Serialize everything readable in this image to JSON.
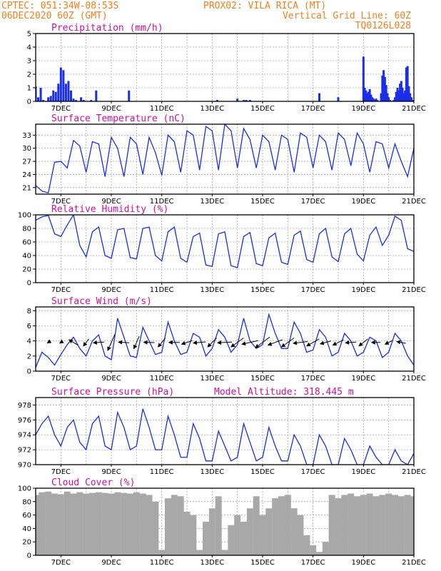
{
  "header": {
    "line1_left": "CPTEC:   051:34W-08:53S",
    "line1_right": "PROX02: VILA RICA (MT)",
    "line2_left": "06DEC2020 60Z (GMT)",
    "line2_right": "Vertical Grid Line: 60Z",
    "line3_right": "TQ0126L028"
  },
  "colors": {
    "header": "#f08020",
    "panel_title": "#d0109a",
    "series": "#1a2ee8",
    "cloud": "#a8a8a8",
    "wind_arrow": "#000000"
  },
  "chart_data": [
    {
      "type": "bar",
      "title": "Precipitation (mm/h)",
      "x": [
        0.0,
        0.1,
        0.2,
        0.3,
        0.4,
        0.5,
        0.6,
        0.7,
        0.8,
        0.9,
        1.0,
        1.1,
        1.2,
        1.3,
        1.4,
        1.5,
        1.6,
        1.7,
        1.8,
        1.9,
        2.2,
        2.4,
        3.7,
        7.2,
        8.0,
        8.25,
        8.35,
        8.5,
        11.25,
        12.0,
        13.0,
        13.05,
        13.1,
        13.15,
        13.2,
        13.25,
        13.3,
        13.35,
        13.4,
        13.45,
        13.5,
        13.55,
        13.6,
        13.65,
        13.7,
        13.75,
        13.8,
        13.85,
        13.9,
        13.95,
        14.0,
        14.05,
        14.1,
        14.15,
        14.2,
        14.25,
        14.3,
        14.35,
        14.4,
        14.45,
        14.5,
        14.55,
        14.6,
        14.65,
        14.7,
        14.75,
        14.8,
        14.85,
        14.9,
        14.95,
        15.0
      ],
      "values": [
        1.1,
        0.3,
        1.0,
        0.1,
        0.0,
        0.3,
        0.4,
        0.8,
        0.7,
        1.3,
        2.5,
        2.3,
        1.3,
        1.5,
        0.8,
        0.2,
        0.1,
        0.0,
        0.3,
        0.1,
        0.1,
        0.8,
        0.8,
        0.1,
        0.2,
        0.1,
        0.1,
        0.1,
        0.6,
        0.3,
        3.3,
        1.0,
        0.8,
        0.6,
        0.7,
        0.9,
        0.5,
        0.3,
        0.2,
        0.1,
        0.2,
        0.1,
        0.0,
        0.0,
        0.6,
        1.9,
        2.3,
        1.8,
        1.2,
        0.6,
        0.3,
        0.1,
        0.0,
        0.0,
        0.1,
        0.3,
        0.7,
        1.0,
        0.8,
        1.3,
        1.5,
        1.0,
        0.6,
        0.8,
        2.5,
        2.6,
        1.1,
        0.6,
        0.3,
        0.1,
        0.0
      ],
      "ylim": [
        0,
        5
      ],
      "yticks": [
        0,
        1,
        2,
        3,
        4,
        5
      ]
    },
    {
      "type": "line",
      "title": "Surface Temperature (nC)",
      "x": [
        0.0,
        0.25,
        0.5,
        0.75,
        1.0,
        1.25,
        1.5,
        1.75,
        2.0,
        2.25,
        2.5,
        2.75,
        3.0,
        3.25,
        3.5,
        3.75,
        4.0,
        4.25,
        4.5,
        4.75,
        5.0,
        5.25,
        5.5,
        5.75,
        6.0,
        6.25,
        6.5,
        6.75,
        7.0,
        7.25,
        7.5,
        7.75,
        8.0,
        8.25,
        8.5,
        8.75,
        9.0,
        9.25,
        9.5,
        9.75,
        10.0,
        10.25,
        10.5,
        10.75,
        11.0,
        11.25,
        11.5,
        11.75,
        12.0,
        12.25,
        12.5,
        12.75,
        13.0,
        13.25,
        13.5,
        13.75,
        14.0,
        14.25,
        14.5,
        14.75,
        15.0
      ],
      "values": [
        21.5,
        20.2,
        19.8,
        26.8,
        27.0,
        25.5,
        31.8,
        30.5,
        24.5,
        31.5,
        31.0,
        23.5,
        32.5,
        30.0,
        23.5,
        32.5,
        31.0,
        24.0,
        32.5,
        29.0,
        23.8,
        33.0,
        31.5,
        24.5,
        34.0,
        33.0,
        25.0,
        35.0,
        34.0,
        25.0,
        35.5,
        34.0,
        25.5,
        34.5,
        32.0,
        25.5,
        33.0,
        31.5,
        25.0,
        33.0,
        32.0,
        24.5,
        33.5,
        32.5,
        25.5,
        33.0,
        31.5,
        25.0,
        33.5,
        32.0,
        26.0,
        33.5,
        31.0,
        24.5,
        31.5,
        31.0,
        25.5,
        31.0,
        27.0,
        23.5,
        30.0
      ],
      "ylim": [
        19.5,
        35.5
      ],
      "yticks": [
        21,
        24,
        27,
        30,
        33
      ]
    },
    {
      "type": "line",
      "title": "Relative Humidity (%)",
      "x": [
        0.0,
        0.25,
        0.5,
        0.75,
        1.0,
        1.25,
        1.5,
        1.75,
        2.0,
        2.25,
        2.5,
        2.75,
        3.0,
        3.25,
        3.5,
        3.75,
        4.0,
        4.25,
        4.5,
        4.75,
        5.0,
        5.25,
        5.5,
        5.75,
        6.0,
        6.25,
        6.5,
        6.75,
        7.0,
        7.25,
        7.5,
        7.75,
        8.0,
        8.25,
        8.5,
        8.75,
        9.0,
        9.25,
        9.5,
        9.75,
        10.0,
        10.25,
        10.5,
        10.75,
        11.0,
        11.25,
        11.5,
        11.75,
        12.0,
        12.25,
        12.5,
        12.75,
        13.0,
        13.25,
        13.5,
        13.75,
        14.0,
        14.25,
        14.5,
        14.75,
        15.0
      ],
      "values": [
        92.0,
        97.0,
        99.0,
        72.0,
        68.0,
        85.0,
        100.0,
        55.0,
        38.0,
        75.0,
        82.0,
        40.0,
        36.0,
        78.0,
        80.0,
        37.0,
        35.0,
        80.0,
        82.0,
        40.0,
        32.0,
        75.0,
        82.0,
        36.0,
        30.0,
        68.0,
        73.0,
        26.0,
        24.0,
        72.0,
        75.0,
        25.0,
        22.0,
        68.0,
        74.0,
        28.0,
        25.0,
        66.0,
        73.0,
        30.0,
        27.0,
        70.0,
        76.0,
        34.0,
        30.0,
        72.0,
        80.0,
        38.0,
        31.0,
        72.0,
        80.0,
        42.0,
        32.0,
        70.0,
        82.0,
        55.0,
        70.0,
        98.0,
        92.0,
        50.0,
        46.0
      ],
      "ylim": [
        0,
        100
      ],
      "yticks": [
        0,
        20,
        40,
        60,
        80,
        100
      ]
    },
    {
      "type": "line",
      "title": "Surface Wind (m/s)",
      "x": [
        0.0,
        0.25,
        0.5,
        0.75,
        1.0,
        1.25,
        1.5,
        1.75,
        2.0,
        2.25,
        2.5,
        2.75,
        3.0,
        3.25,
        3.5,
        3.75,
        4.0,
        4.25,
        4.5,
        4.75,
        5.0,
        5.25,
        5.5,
        5.75,
        6.0,
        6.25,
        6.5,
        6.75,
        7.0,
        7.25,
        7.5,
        7.75,
        8.0,
        8.25,
        8.5,
        8.75,
        9.0,
        9.25,
        9.5,
        9.75,
        10.0,
        10.25,
        10.5,
        10.75,
        11.0,
        11.25,
        11.5,
        11.75,
        12.0,
        12.25,
        12.5,
        12.75,
        13.0,
        13.25,
        13.5,
        13.75,
        14.0,
        14.25,
        14.5,
        14.75,
        15.0
      ],
      "values": [
        0.5,
        2.5,
        1.8,
        0.8,
        2.2,
        3.5,
        4.5,
        3.0,
        2.0,
        4.0,
        4.8,
        2.0,
        1.5,
        7.0,
        4.5,
        2.0,
        1.8,
        5.8,
        4.0,
        2.2,
        2.5,
        6.5,
        4.0,
        2.2,
        2.5,
        5.0,
        4.5,
        2.0,
        3.0,
        5.5,
        4.5,
        2.5,
        3.5,
        7.0,
        4.0,
        3.0,
        3.5,
        7.5,
        5.0,
        3.0,
        3.0,
        6.5,
        5.0,
        2.5,
        2.8,
        5.5,
        4.5,
        2.0,
        2.5,
        5.0,
        4.0,
        2.0,
        2.5,
        4.5,
        4.0,
        1.8,
        2.5,
        5.0,
        4.0,
        2.0,
        0.8
      ],
      "ylim": [
        0,
        8.5
      ],
      "yticks": [
        0,
        2,
        4,
        6,
        8
      ],
      "vectors": {
        "x": [
          0.5,
          1.0,
          1.5,
          2.0,
          2.5,
          3.0,
          3.5,
          4.0,
          4.5,
          5.0,
          5.5,
          6.0,
          6.5,
          7.0,
          7.5,
          8.0,
          8.5,
          9.0,
          9.5,
          10.0,
          10.5,
          11.0,
          11.5,
          12.0,
          12.5,
          13.0,
          13.5,
          14.0,
          14.5
        ],
        "u": [
          -0.5,
          -0.6,
          -2.5,
          -1.5,
          -3.0,
          -2.0,
          -3.0,
          -1.5,
          -3.0,
          -2.0,
          -3.0,
          -3.0,
          -3.5,
          -2.5,
          -4.0,
          -3.5,
          -4.5,
          -4.0,
          -4.0,
          -3.5,
          -4.0,
          -3.5,
          -3.0,
          -3.0,
          -3.0,
          -2.5,
          -2.5,
          -2.0,
          -2.5
        ],
        "v": [
          -0.3,
          -0.4,
          1.5,
          -2.0,
          -0.2,
          -4.5,
          0.2,
          -3.5,
          0.1,
          -2.5,
          0.0,
          -1.0,
          -0.3,
          -2.5,
          -0.2,
          -2.5,
          -1.0,
          -3.0,
          -1.5,
          -2.5,
          -0.5,
          -2.0,
          -0.8,
          -1.5,
          -0.2,
          -2.0,
          0.0,
          -1.0,
          0.5
        ]
      }
    },
    {
      "type": "line",
      "title": "Surface Pressure (hPa)",
      "annotation": "Model Altitude: 318.445 m",
      "x": [
        0.0,
        0.25,
        0.5,
        0.75,
        1.0,
        1.25,
        1.5,
        1.75,
        2.0,
        2.25,
        2.5,
        2.75,
        3.0,
        3.25,
        3.5,
        3.75,
        4.0,
        4.25,
        4.5,
        4.75,
        5.0,
        5.25,
        5.5,
        5.75,
        6.0,
        6.25,
        6.5,
        6.75,
        7.0,
        7.25,
        7.5,
        7.75,
        8.0,
        8.25,
        8.5,
        8.75,
        9.0,
        9.25,
        9.5,
        9.75,
        10.0,
        10.25,
        10.5,
        10.75,
        11.0,
        11.25,
        11.5,
        11.75,
        12.0,
        12.25,
        12.5,
        12.75,
        13.0,
        13.25,
        13.5,
        13.75,
        14.0,
        14.25,
        14.5,
        14.75,
        15.0
      ],
      "values": [
        974.0,
        975.5,
        976.5,
        974.0,
        972.5,
        975.0,
        976.0,
        973.0,
        972.0,
        975.5,
        976.5,
        972.5,
        972.0,
        977.0,
        975.0,
        972.0,
        972.5,
        977.5,
        975.0,
        972.0,
        972.0,
        976.5,
        974.0,
        971.0,
        971.0,
        975.5,
        973.5,
        970.5,
        970.5,
        974.5,
        972.5,
        970.5,
        971.0,
        975.5,
        973.0,
        970.5,
        971.0,
        975.0,
        972.5,
        970.5,
        970.5,
        974.0,
        972.5,
        970.0,
        970.0,
        974.0,
        972.5,
        970.0,
        970.0,
        973.5,
        972.0,
        970.0,
        970.0,
        972.5,
        971.0,
        970.0,
        970.0,
        972.0,
        970.5,
        970.0,
        971.5
      ],
      "ylim": [
        970,
        979
      ],
      "yticks": [
        970,
        972,
        974,
        976,
        978
      ]
    },
    {
      "type": "bar",
      "title": "Cloud Cover (%)",
      "x": [
        0.0,
        0.25,
        0.5,
        0.75,
        1.0,
        1.25,
        1.5,
        1.75,
        2.0,
        2.25,
        2.5,
        2.75,
        3.0,
        3.25,
        3.5,
        3.75,
        4.0,
        4.25,
        4.5,
        4.75,
        5.0,
        5.25,
        5.5,
        5.75,
        6.0,
        6.25,
        6.5,
        6.75,
        7.0,
        7.25,
        7.5,
        7.75,
        8.0,
        8.25,
        8.5,
        8.75,
        9.0,
        9.25,
        9.5,
        9.75,
        10.0,
        10.25,
        10.5,
        10.75,
        11.0,
        11.25,
        11.5,
        11.75,
        12.0,
        12.25,
        12.5,
        12.75,
        13.0,
        13.25,
        13.5,
        13.75,
        14.0,
        14.25,
        14.5,
        14.75,
        15.0
      ],
      "values": [
        90.0,
        94.0,
        95.0,
        92.0,
        91.0,
        95.0,
        92.0,
        94.0,
        92.0,
        93.0,
        94.0,
        93.0,
        92.0,
        94.0,
        93.0,
        92.0,
        94.0,
        92.0,
        90.0,
        80.0,
        8.0,
        85.0,
        90.0,
        88.0,
        65.0,
        60.0,
        8.0,
        50.0,
        70.0,
        88.0,
        8.0,
        45.0,
        60.0,
        50.0,
        70.0,
        88.0,
        60.0,
        70.0,
        85.0,
        88.0,
        90.0,
        70.0,
        60.0,
        30.0,
        15.0,
        5.0,
        20.0,
        90.0,
        85.0,
        90.0,
        92.0,
        88.0,
        90.0,
        92.0,
        88.0,
        90.0,
        92.0,
        90.0,
        88.0,
        90.0,
        88.0
      ],
      "ylim": [
        0,
        100
      ],
      "yticks": [
        0,
        20,
        40,
        60,
        80,
        100
      ]
    }
  ],
  "x_axis": {
    "range": [
      0,
      15
    ],
    "tick_positions": [
      1,
      3,
      5,
      7,
      9,
      11,
      13,
      15
    ],
    "tick_labels": [
      "7DEC",
      "9DEC",
      "11DEC",
      "13DEC",
      "15DEC",
      "17DEC",
      "19DEC",
      "21DEC"
    ],
    "gridlines": [
      0,
      1,
      2,
      3,
      4,
      5,
      6,
      7,
      8,
      9,
      10,
      11,
      12,
      13,
      14,
      15
    ]
  }
}
